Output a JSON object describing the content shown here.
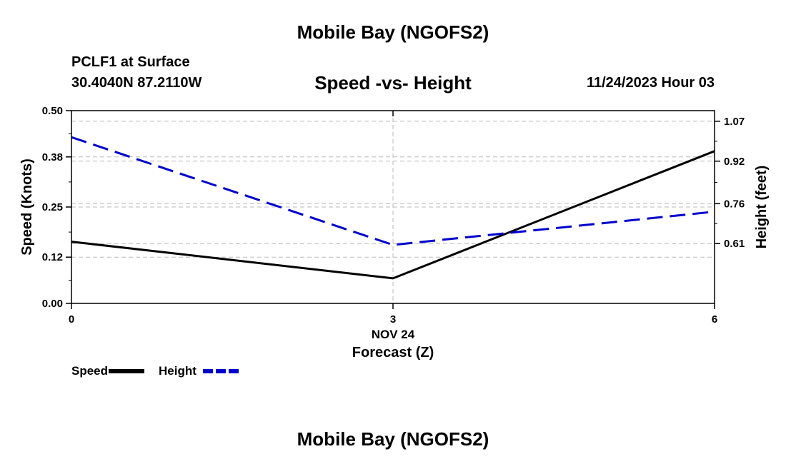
{
  "header": {
    "title": "Mobile Bay (NGOFS2)",
    "station": "PCLF1 at Surface",
    "coords": "30.4040N  87.2110W",
    "subtitle": "Speed -vs- Height",
    "datetime": "11/24/2023 Hour 03"
  },
  "footer": {
    "title": "Mobile Bay (NGOFS2)"
  },
  "chart_data": {
    "type": "line",
    "title": "Speed -vs- Height",
    "xlabel": "Forecast (Z)",
    "xlabel_date": "NOV 24",
    "ylabel_left": "Speed (Knots)",
    "ylabel_right": "Height (feet)",
    "x": [
      0,
      3,
      6
    ],
    "xlim": [
      0,
      6
    ],
    "x_ticks": [
      "0",
      "3",
      "6"
    ],
    "ylim_left": [
      0,
      0.5
    ],
    "y_ticks_left": [
      "0.00",
      "0.12",
      "0.25",
      "0.38",
      "0.50"
    ],
    "ylim_right": [
      0.385,
      1.11
    ],
    "y_ticks_right": [
      "0.61",
      "0.76",
      "0.92",
      "1.07"
    ],
    "grid": true,
    "series": [
      {
        "name": "Speed",
        "axis": "left",
        "color": "#000000",
        "dash": "solid",
        "values": [
          0.16,
          0.065,
          0.395
        ]
      },
      {
        "name": "Height",
        "axis": "right",
        "color": "#0000cc",
        "dash": "dashed",
        "values": [
          1.01,
          0.605,
          0.73
        ]
      }
    ]
  }
}
